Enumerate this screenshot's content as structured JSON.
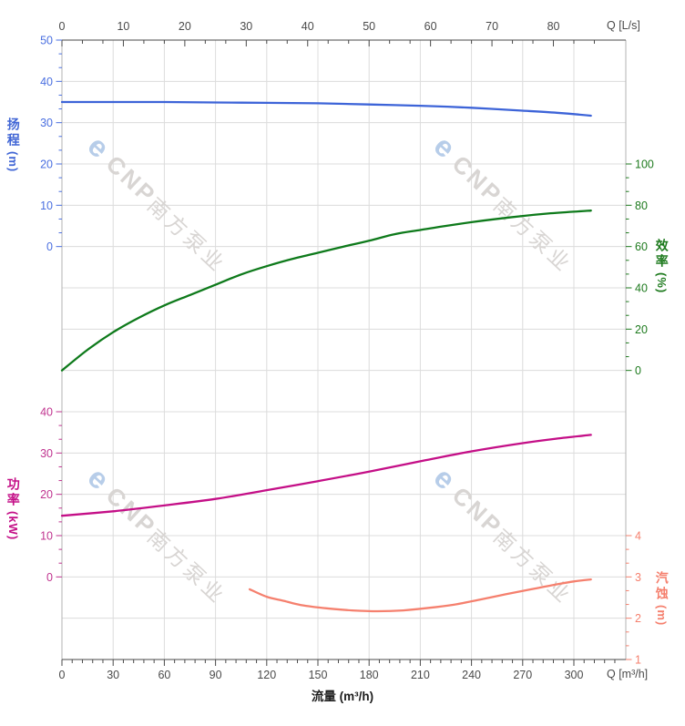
{
  "watermark": {
    "logo_glyph": "e",
    "brand": "CNP",
    "company": "南方泵业",
    "logo_color": "#b7cde9",
    "text_color": "#d8d5d3"
  },
  "chart_data": {
    "type": "line",
    "grid": {
      "visible": true,
      "color": "#dcdcdc",
      "border_color": "#b3b3b3",
      "axis_color": "#4a4a4a",
      "rows": 15
    },
    "x_bottom": {
      "unit_label": "Q [m³/h]",
      "axis_title": "流量 (m³/h)",
      "ticks": [
        0,
        30,
        60,
        90,
        120,
        150,
        180,
        210,
        240,
        270,
        300
      ],
      "minor_divisions": 5,
      "range": [
        0,
        330
      ],
      "tick_color": "#4a4a4a"
    },
    "x_top": {
      "unit_label": "Q [L/s]",
      "ticks": [
        0,
        10,
        20,
        30,
        40,
        50,
        60,
        70,
        80
      ],
      "minor_divisions": 3,
      "m3h_per_unit": 3.6,
      "tick_color": "#4a4a4a"
    },
    "y_axes": {
      "head": {
        "title": "扬程",
        "unit": "(m)",
        "side": "left",
        "label_color": "#4a6fe0",
        "ticks": [
          50,
          40,
          30,
          20,
          10,
          0
        ],
        "minor_divisions": 3,
        "top_value": 50,
        "bottom_value": 0,
        "row_start": 0,
        "row_end": 5
      },
      "efficiency": {
        "title": "效率",
        "unit": "(%)",
        "side": "right",
        "label_color": "#1d7a1d",
        "ticks": [
          100,
          80,
          60,
          40,
          20,
          0
        ],
        "minor_divisions": 3,
        "top_value": 100,
        "bottom_value": 0,
        "row_start": 3,
        "row_end": 8
      },
      "power": {
        "title": "功率",
        "unit": "(kW)",
        "side": "left",
        "label_color": "#c0338f",
        "ticks": [
          40,
          30,
          20,
          10,
          0
        ],
        "minor_divisions": 3,
        "top_value": 40,
        "bottom_value": 0,
        "row_start": 9,
        "row_end": 13
      },
      "npsh": {
        "title": "汽蚀",
        "unit": "(m)",
        "side": "right",
        "label_color": "#f5806e",
        "ticks": [
          4,
          3,
          2,
          1
        ],
        "minor_divisions": 3,
        "top_value": 4,
        "bottom_value": 1,
        "row_start": 12,
        "row_end": 15
      }
    },
    "series": [
      {
        "name": "head",
        "axis": "head",
        "color": "#3d64d8",
        "points": [
          [
            0,
            35.0
          ],
          [
            30,
            35.0
          ],
          [
            60,
            35.0
          ],
          [
            90,
            34.9
          ],
          [
            120,
            34.8
          ],
          [
            150,
            34.7
          ],
          [
            180,
            34.4
          ],
          [
            210,
            34.1
          ],
          [
            240,
            33.6
          ],
          [
            270,
            32.9
          ],
          [
            290,
            32.4
          ],
          [
            310,
            31.7
          ]
        ]
      },
      {
        "name": "efficiency",
        "axis": "efficiency",
        "color": "#0e7a1b",
        "points": [
          [
            0,
            0
          ],
          [
            15,
            10
          ],
          [
            30,
            18.5
          ],
          [
            45,
            25.5
          ],
          [
            60,
            31.5
          ],
          [
            75,
            36.5
          ],
          [
            90,
            41.5
          ],
          [
            105,
            46.5
          ],
          [
            120,
            50.5
          ],
          [
            135,
            54
          ],
          [
            150,
            57
          ],
          [
            165,
            60
          ],
          [
            180,
            62.8
          ],
          [
            195,
            66
          ],
          [
            210,
            68
          ],
          [
            225,
            70
          ],
          [
            240,
            71.8
          ],
          [
            255,
            73.4
          ],
          [
            270,
            74.8
          ],
          [
            285,
            76
          ],
          [
            300,
            76.9
          ],
          [
            310,
            77.4
          ]
        ]
      },
      {
        "name": "power",
        "axis": "power",
        "color": "#c40f87",
        "points": [
          [
            0,
            14.8
          ],
          [
            30,
            15.9
          ],
          [
            60,
            17.3
          ],
          [
            90,
            18.9
          ],
          [
            120,
            21.0
          ],
          [
            150,
            23.2
          ],
          [
            180,
            25.5
          ],
          [
            210,
            28.0
          ],
          [
            240,
            30.4
          ],
          [
            270,
            32.4
          ],
          [
            290,
            33.5
          ],
          [
            310,
            34.4
          ]
        ]
      },
      {
        "name": "npsh",
        "axis": "npsh",
        "color": "#f5806e",
        "points": [
          [
            110,
            2.7
          ],
          [
            120,
            2.52
          ],
          [
            130,
            2.42
          ],
          [
            140,
            2.32
          ],
          [
            155,
            2.24
          ],
          [
            170,
            2.19
          ],
          [
            185,
            2.17
          ],
          [
            200,
            2.19
          ],
          [
            215,
            2.25
          ],
          [
            230,
            2.33
          ],
          [
            245,
            2.45
          ],
          [
            260,
            2.58
          ],
          [
            275,
            2.7
          ],
          [
            290,
            2.82
          ],
          [
            300,
            2.89
          ],
          [
            310,
            2.94
          ]
        ]
      }
    ]
  }
}
